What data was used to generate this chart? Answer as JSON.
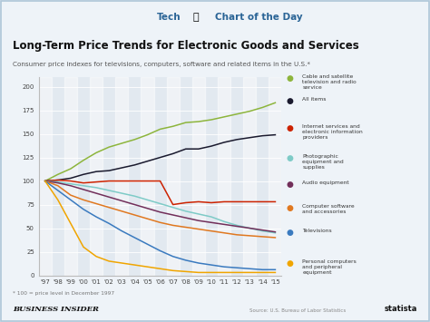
{
  "title": "Long-Term Price Trends for Electronic Goods and Services",
  "subtitle": "Consumer price indexes for televisions, computers, software and related items in the U.S.*",
  "footnote": "* 100 = price level in December 1997",
  "source": "Source: U.S. Bureau of Labor Statistics",
  "footer_left": "BUSINESS INSIDER",
  "footer_right": "statista",
  "xlabels": [
    "'97",
    "'98",
    "'99",
    "'00",
    "'01",
    "'02",
    "'03",
    "'04",
    "'05",
    "'06",
    "'07",
    "'08",
    "'09",
    "'10",
    "'11",
    "'12",
    "'13",
    "'14",
    "'15"
  ],
  "series": [
    {
      "name": "Cable and satellite\ntelevision and radio\nservice",
      "color": "#8db53c",
      "values": [
        100,
        107,
        113,
        122,
        130,
        136,
        140,
        144,
        149,
        155,
        158,
        162,
        163,
        165,
        168,
        171,
        174,
        178,
        183
      ]
    },
    {
      "name": "All items",
      "color": "#1a1a2e",
      "values": [
        100,
        101,
        103,
        107,
        110,
        111,
        114,
        117,
        121,
        125,
        129,
        134,
        134,
        137,
        141,
        144,
        146,
        148,
        149
      ]
    },
    {
      "name": "Internet services and\nelectronic information\nproviders",
      "color": "#cc2200",
      "values": [
        100,
        101,
        100,
        98,
        99,
        100,
        100,
        100,
        100,
        100,
        75,
        77,
        78,
        77,
        78,
        78,
        78,
        78,
        78
      ]
    },
    {
      "name": "Photographic\nequipment and\nsupplies",
      "color": "#7ecbc7",
      "values": [
        100,
        99,
        97,
        95,
        93,
        90,
        87,
        84,
        80,
        76,
        72,
        68,
        65,
        62,
        57,
        53,
        50,
        47,
        45
      ]
    },
    {
      "name": "Audio equipment",
      "color": "#722f5a",
      "values": [
        100,
        98,
        95,
        91,
        87,
        83,
        79,
        75,
        71,
        67,
        64,
        61,
        58,
        56,
        54,
        52,
        50,
        48,
        46
      ]
    },
    {
      "name": "Computer software\nand accessories",
      "color": "#e07820",
      "values": [
        100,
        95,
        85,
        80,
        76,
        72,
        68,
        64,
        60,
        56,
        53,
        51,
        49,
        47,
        45,
        43,
        42,
        41,
        40
      ]
    },
    {
      "name": "Televisions",
      "color": "#3a7abf",
      "values": [
        100,
        90,
        80,
        70,
        62,
        55,
        47,
        40,
        33,
        26,
        20,
        16,
        13,
        11,
        9,
        8,
        7,
        6,
        6
      ]
    },
    {
      "name": "Personal computers\nand peripheral\nequipment",
      "color": "#f0a500",
      "values": [
        100,
        80,
        55,
        30,
        20,
        15,
        13,
        11,
        9,
        7,
        5,
        4,
        3,
        3,
        3,
        3,
        3,
        3,
        3
      ]
    }
  ],
  "ylim": [
    0,
    210
  ],
  "yticks": [
    0,
    25,
    50,
    75,
    100,
    125,
    150,
    175,
    200
  ],
  "bg_color": "#eef3f8",
  "plot_bg": "#e2e9f0",
  "header_bg": "#ffffff"
}
